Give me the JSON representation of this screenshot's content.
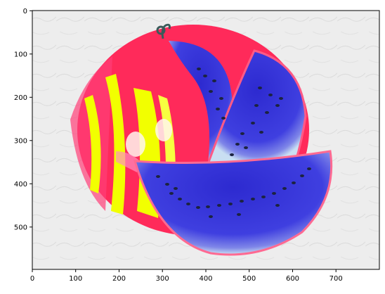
{
  "image": {
    "subject": "watermelon",
    "colors": {
      "rind": "#ff2a5a",
      "flesh": "#3a3ad6",
      "stripe": "#f2ff00",
      "seed": "#1c2340",
      "background": "#ececec"
    }
  },
  "axes": {
    "x_ticks": [
      "0",
      "100",
      "200",
      "300",
      "400",
      "500",
      "600",
      "700"
    ],
    "y_ticks": [
      "0",
      "100",
      "200",
      "300",
      "400",
      "500"
    ]
  }
}
